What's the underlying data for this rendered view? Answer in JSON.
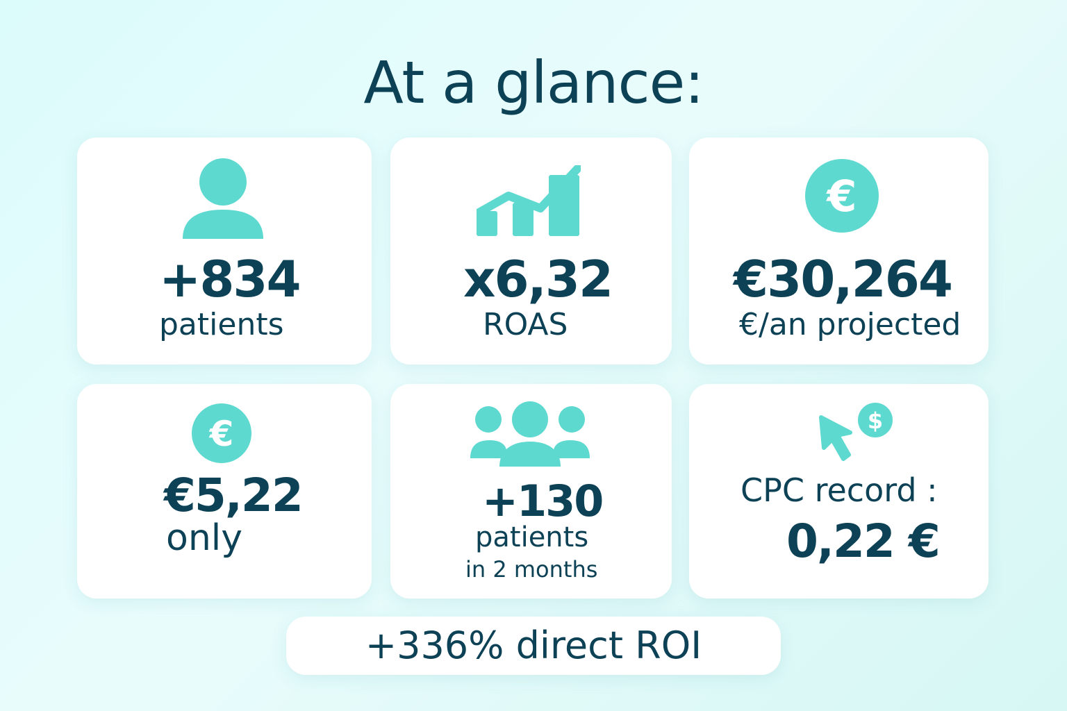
{
  "title": "At a glance:",
  "colors": {
    "accent": "#5dd9d0",
    "text": "#0d4256",
    "card": "#ffffff"
  },
  "cards": [
    {
      "icon": "person-icon",
      "value": "+834",
      "label": "patients"
    },
    {
      "icon": "bar-chart-icon",
      "value": "x6,32",
      "label": "ROAS"
    },
    {
      "icon": "euro-coin-icon",
      "value": "€30,264",
      "label": "€/an projected"
    },
    {
      "icon": "euro-coin-icon",
      "value": "€5,22",
      "label": "only"
    },
    {
      "icon": "group-icon",
      "value": "+130",
      "label": "patients",
      "label2": "in 2 months"
    },
    {
      "icon": "cursor-dollar-icon",
      "label": "CPC record :",
      "value": "0,22 €"
    }
  ],
  "footer": {
    "roi": "+336% direct ROI"
  }
}
